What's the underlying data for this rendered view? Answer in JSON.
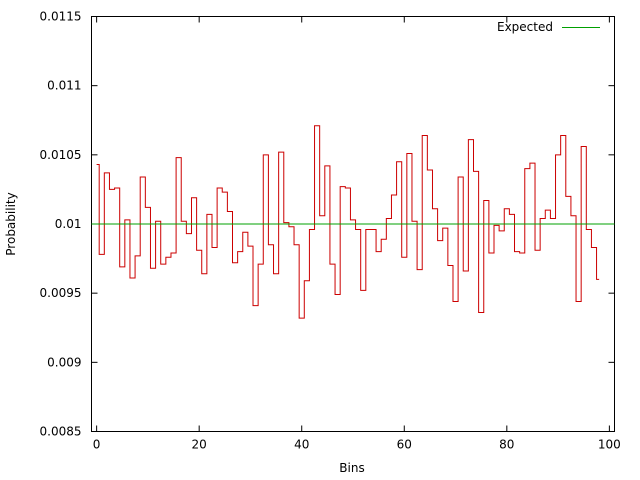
{
  "chart_data": {
    "type": "line",
    "step": "histeps",
    "xlabel": "Bins",
    "ylabel": "Probability",
    "xlim": [
      -1,
      101
    ],
    "ylim": [
      0.0085,
      0.0115
    ],
    "grid": false,
    "legend_position": "top-right",
    "xticks": [
      {
        "value": 0,
        "label": "0"
      },
      {
        "value": 20,
        "label": "20"
      },
      {
        "value": 40,
        "label": "40"
      },
      {
        "value": 60,
        "label": "60"
      },
      {
        "value": 80,
        "label": "80"
      },
      {
        "value": 100,
        "label": "100"
      }
    ],
    "yticks": [
      {
        "value": 0.0085,
        "label": "0.0085"
      },
      {
        "value": 0.009,
        "label": "0.009"
      },
      {
        "value": 0.0095,
        "label": "0.0095"
      },
      {
        "value": 0.01,
        "label": "0.01"
      },
      {
        "value": 0.0105,
        "label": "0.0105"
      },
      {
        "value": 0.011,
        "label": "0.011"
      },
      {
        "value": 0.0115,
        "label": "0.0115"
      }
    ],
    "series": [
      {
        "name": "",
        "color": "#cc0000",
        "x": [
          0,
          1,
          2,
          3,
          4,
          5,
          6,
          7,
          8,
          9,
          10,
          11,
          12,
          13,
          14,
          15,
          16,
          17,
          18,
          19,
          20,
          21,
          22,
          23,
          24,
          25,
          26,
          27,
          28,
          29,
          30,
          31,
          32,
          33,
          34,
          35,
          36,
          37,
          38,
          39,
          40,
          41,
          42,
          43,
          44,
          45,
          46,
          47,
          48,
          49,
          50,
          51,
          52,
          53,
          54,
          55,
          56,
          57,
          58,
          59,
          60,
          61,
          62,
          63,
          64,
          65,
          66,
          67,
          68,
          69,
          70,
          71,
          72,
          73,
          74,
          75,
          76,
          77,
          78,
          79,
          80,
          81,
          82,
          83,
          84,
          85,
          86,
          87,
          88,
          89,
          90,
          91,
          92,
          93,
          94,
          95,
          96,
          97,
          98
        ],
        "values": [
          0.01043,
          0.00978,
          0.01037,
          0.01025,
          0.01026,
          0.00969,
          0.01003,
          0.00961,
          0.00977,
          0.01034,
          0.01012,
          0.00968,
          0.01002,
          0.00971,
          0.00976,
          0.00979,
          0.01048,
          0.01002,
          0.00993,
          0.01019,
          0.00981,
          0.00964,
          0.01007,
          0.00983,
          0.01026,
          0.01023,
          0.01009,
          0.00972,
          0.0098,
          0.00994,
          0.00984,
          0.00941,
          0.00971,
          0.0105,
          0.00985,
          0.00964,
          0.01052,
          0.01001,
          0.00998,
          0.00985,
          0.00932,
          0.00959,
          0.00996,
          0.01071,
          0.01006,
          0.01042,
          0.00971,
          0.00949,
          0.01027,
          0.01026,
          0.01003,
          0.00996,
          0.00952,
          0.00996,
          0.00996,
          0.0098,
          0.00989,
          0.01004,
          0.01021,
          0.01045,
          0.00976,
          0.01051,
          0.01002,
          0.00967,
          0.01064,
          0.01039,
          0.01011,
          0.00988,
          0.00997,
          0.0097,
          0.00944,
          0.01034,
          0.00966,
          0.01061,
          0.01038,
          0.00936,
          0.01017,
          0.00979,
          0.00999,
          0.00995,
          0.01011,
          0.01007,
          0.0098,
          0.00979,
          0.0104,
          0.01044,
          0.00981,
          0.01004,
          0.0101,
          0.01004,
          0.0105,
          0.01064,
          0.0102,
          0.01006,
          0.00944,
          0.01056,
          0.00996,
          0.00983,
          0.0096
        ]
      },
      {
        "name": "Expected",
        "color": "#00a000",
        "values": [
          0.01,
          0.01
        ]
      }
    ]
  }
}
